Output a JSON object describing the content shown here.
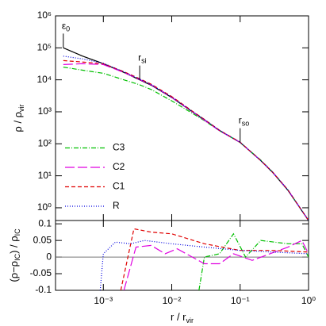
{
  "chart_data": [
    {
      "type": "line",
      "xscale": "log",
      "yscale": "log",
      "xlim": [
        0.0002,
        1
      ],
      "ylim": [
        0.4,
        1000000
      ],
      "yticks": [
        {
          "value": 1,
          "label": "10⁰"
        },
        {
          "value": 10,
          "label": "10¹"
        },
        {
          "value": 100,
          "label": "10²"
        },
        {
          "value": 1000,
          "label": "10³"
        },
        {
          "value": 10000,
          "label": "10⁴"
        },
        {
          "value": 100000,
          "label": "10⁵"
        },
        {
          "value": 1000000,
          "label": "10⁶"
        }
      ],
      "ylabel": {
        "text": "ρ  /  ρ",
        "sub": "vir"
      },
      "legend": "lower left",
      "annotations": [
        {
          "x": 0.00026,
          "y": 100000,
          "text": "ε",
          "sub": "0"
        },
        {
          "x": 0.0034,
          "y": 10000,
          "text": "r",
          "sub": "si"
        },
        {
          "x": 0.1,
          "y": 110,
          "text": "r",
          "sub": "so"
        }
      ],
      "series": [
        {
          "color": "#000000",
          "dash": "none",
          "x": [
            0.00026,
            0.0005,
            0.001,
            0.002,
            0.0034,
            0.005,
            0.01,
            0.02,
            0.03,
            0.05,
            0.1,
            0.2,
            0.3,
            0.5,
            1
          ],
          "values": [
            100000,
            55000,
            32000,
            17000,
            10000,
            6800,
            2800,
            1000,
            560,
            260,
            110,
            30,
            12.6,
            3.5,
            0.4
          ]
        },
        {
          "name": "C3",
          "color": "#00c000",
          "dash": "6 2 1 2",
          "x": [
            0.00026,
            0.0005,
            0.001,
            0.002,
            0.0034,
            0.005,
            0.01,
            0.02,
            0.03,
            0.05,
            0.1,
            0.2,
            0.3,
            0.5,
            1
          ],
          "values": [
            25000,
            20000,
            16000,
            10000,
            7000,
            5000,
            2200,
            900,
            530,
            255,
            110,
            31,
            13,
            3.6,
            0.4
          ]
        },
        {
          "name": "C2",
          "color": "#e000e0",
          "dash": "12 4",
          "x": [
            0.00026,
            0.0005,
            0.001,
            0.002,
            0.0034,
            0.005,
            0.01,
            0.02,
            0.03,
            0.05,
            0.1,
            0.2,
            0.3,
            0.5,
            1
          ],
          "values": [
            30000,
            32000,
            30000,
            17000,
            10200,
            7000,
            2850,
            1010,
            550,
            255,
            111,
            30,
            12.8,
            3.6,
            0.4
          ]
        },
        {
          "name": "C1",
          "color": "#e00000",
          "dash": "5 3",
          "x": [
            0.00026,
            0.0005,
            0.001,
            0.002,
            0.0034,
            0.005,
            0.01,
            0.02,
            0.03,
            0.05,
            0.1,
            0.2,
            0.3,
            0.5,
            1
          ],
          "values": [
            40000,
            36000,
            32000,
            18000,
            10800,
            7300,
            3000,
            1050,
            580,
            265,
            112,
            30,
            12.8,
            3.6,
            0.4
          ]
        },
        {
          "name": "R",
          "color": "#0000e0",
          "dash": "1 2",
          "x": [
            0.00026,
            0.0005,
            0.001,
            0.002,
            0.0034,
            0.005,
            0.01,
            0.02,
            0.03,
            0.05,
            0.1,
            0.2,
            0.3,
            0.5,
            1
          ],
          "values": [
            55000,
            45000,
            33000,
            17700,
            10500,
            7100,
            2900,
            1030,
            575,
            263,
            112,
            30,
            12.8,
            3.6,
            0.4
          ]
        }
      ]
    },
    {
      "type": "line",
      "xscale": "log",
      "yscale": "linear",
      "xlim": [
        0.0002,
        1
      ],
      "ylim": [
        -0.1,
        0.11
      ],
      "xticks": [
        {
          "value": 0.001,
          "label": "10⁻³"
        },
        {
          "value": 0.01,
          "label": "10⁻²"
        },
        {
          "value": 0.1,
          "label": "10⁻¹"
        },
        {
          "value": 1,
          "label": "10⁰"
        }
      ],
      "yticks": [
        -0.1,
        -0.05,
        0,
        0.05,
        0.1
      ],
      "hline": 0,
      "xlabel": {
        "text": "r  /  r",
        "sub": "vir"
      },
      "ylabel": {
        "text": "(ρ−ρ",
        "sub": "IC",
        "text2": ")  /  ρ",
        "sub2": "IC"
      },
      "series": [
        {
          "color": "#00c000",
          "dash": "6 2 1 2",
          "x": [
            0.025,
            0.03,
            0.05,
            0.08,
            0.12,
            0.2,
            0.5,
            0.8,
            1
          ],
          "values": [
            -0.1,
            0.0,
            0.01,
            0.07,
            0.0,
            0.05,
            0.04,
            0.04,
            0.0
          ]
        },
        {
          "color": "#e000e0",
          "dash": "12 4",
          "x": [
            0.002,
            0.003,
            0.005,
            0.008,
            0.012,
            0.03,
            0.05,
            0.08,
            0.15,
            0.5,
            0.8,
            1
          ],
          "values": [
            -0.1,
            0.03,
            0.035,
            0.01,
            0.025,
            -0.02,
            -0.02,
            0.01,
            -0.01,
            0.03,
            0.05,
            0.01
          ]
        },
        {
          "color": "#e00000",
          "dash": "5 3",
          "x": [
            0.0018,
            0.0028,
            0.005,
            0.01,
            0.03,
            0.1,
            0.3,
            1
          ],
          "values": [
            -0.1,
            0.085,
            0.075,
            0.07,
            0.04,
            0.02,
            0.02,
            0.015
          ]
        },
        {
          "color": "#0000e0",
          "dash": "1 2",
          "x": [
            0.0009,
            0.001,
            0.0015,
            0.0025,
            0.004,
            0.01,
            0.03,
            0.1,
            0.3,
            1
          ],
          "values": [
            -0.1,
            0.01,
            0.045,
            0.04,
            0.05,
            0.04,
            0.03,
            0.02,
            0.015,
            0.01
          ]
        }
      ]
    }
  ]
}
